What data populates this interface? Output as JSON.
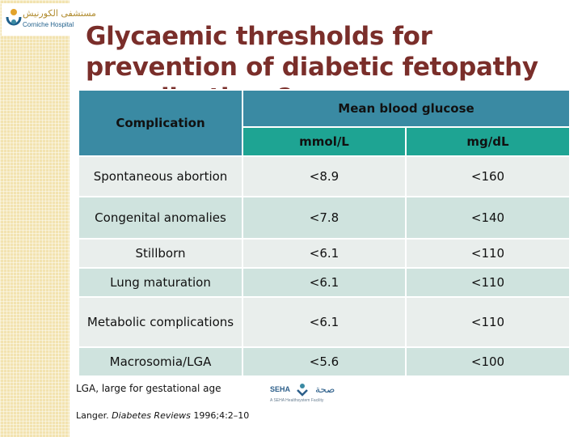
{
  "logo": {
    "arabic_name": "مستشفى الكورنيش",
    "english_name": "Corniche Hospital"
  },
  "title": "Glycaemic thresholds for prevention of diabetic fetopathy complications?",
  "table": {
    "header_complication": "Complication",
    "header_group": "Mean blood glucose",
    "header_units": [
      "mmol/L",
      "mg/dL"
    ],
    "rows": [
      {
        "complication": "Spontaneous abortion",
        "mmol": "<8.9",
        "mgdl": "<160"
      },
      {
        "complication": "Congenital anomalies",
        "mmol": "<7.8",
        "mgdl": "<140"
      },
      {
        "complication": "Stillborn",
        "mmol": "<6.1",
        "mgdl": "<110"
      },
      {
        "complication": "Lung maturation",
        "mmol": "<6.1",
        "mgdl": "<110"
      },
      {
        "complication": "Metabolic complications",
        "mmol": "<6.1",
        "mgdl": "<110"
      },
      {
        "complication": "Macrosomia/LGA",
        "mmol": "<5.6",
        "mgdl": "<100"
      }
    ]
  },
  "footnote": "LGA, large for gestational age",
  "seha": {
    "name": "SEHA",
    "arabic": "صحة",
    "tagline": "A SEHA Healthsystem Facility"
  },
  "reference": {
    "author": "Langer. ",
    "journal": "Diabetes Reviews",
    "citation": " 1996;4:2–10"
  },
  "colors": {
    "title": "#7a2e2a",
    "header_blue": "#3a8aa3",
    "header_teal": "#1ea493",
    "row_light": "#e9eeec",
    "row_dark": "#cfe3de",
    "side_strip": "#f2e3b0"
  }
}
